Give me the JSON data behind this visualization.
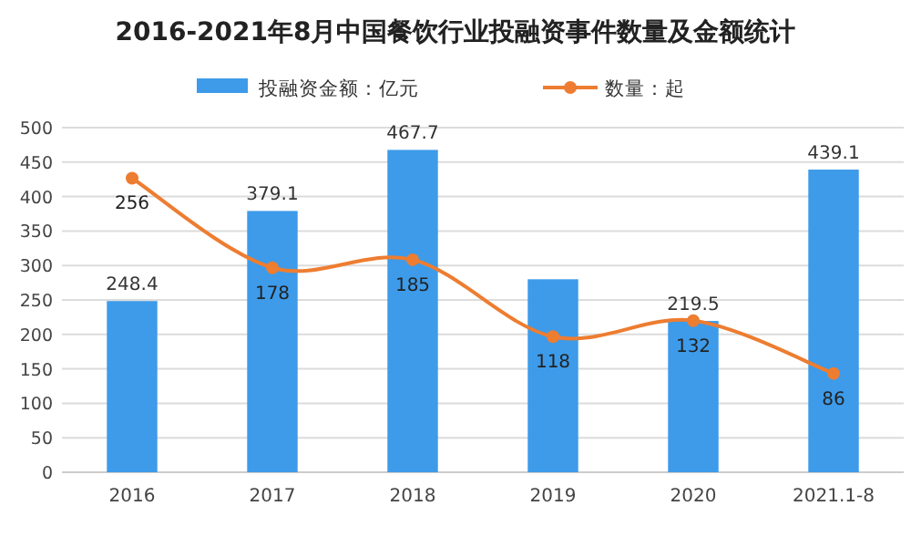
{
  "chart_data": {
    "type": "bar",
    "title": "2016-2021年8月中国餐饮行业投融资事件数量及金额统计",
    "categories": [
      "2016",
      "2017",
      "2018",
      "2019",
      "2020",
      "2021.1-8"
    ],
    "series": [
      {
        "name": "投融资金额：亿元",
        "color": "#3d9be9",
        "values": [
          248.4,
          379.1,
          467.7,
          280,
          219.5,
          439.1
        ],
        "value_labels": [
          "248.4",
          "379.1",
          "467.7",
          null,
          "219.5",
          "439.1"
        ]
      },
      {
        "name": "数量：起",
        "type": "line",
        "axis": "y2",
        "color": "#ed7d31",
        "marker": "circle",
        "values": [
          256,
          178,
          185,
          118,
          132,
          86
        ],
        "data_labels": true
      }
    ],
    "ylim": [
      0,
      500
    ],
    "yticks": [
      0,
      50,
      100,
      150,
      200,
      250,
      300,
      350,
      400,
      450,
      500
    ],
    "y2lim": [
      0,
      300
    ],
    "grid": "y",
    "legend": "top"
  }
}
